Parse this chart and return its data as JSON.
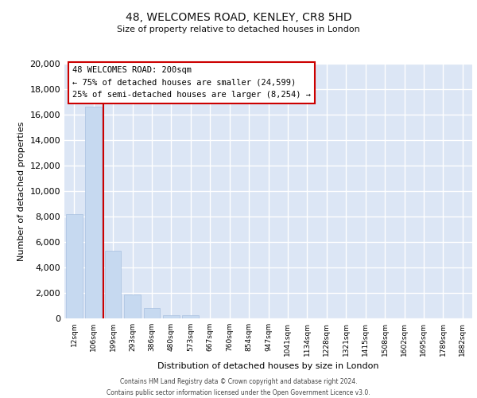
{
  "title": "48, WELCOMES ROAD, KENLEY, CR8 5HD",
  "subtitle": "Size of property relative to detached houses in London",
  "xlabel": "Distribution of detached houses by size in London",
  "ylabel": "Number of detached properties",
  "bar_labels": [
    "12sqm",
    "106sqm",
    "199sqm",
    "293sqm",
    "386sqm",
    "480sqm",
    "573sqm",
    "667sqm",
    "760sqm",
    "854sqm",
    "947sqm",
    "1041sqm",
    "1134sqm",
    "1228sqm",
    "1321sqm",
    "1415sqm",
    "1508sqm",
    "1602sqm",
    "1695sqm",
    "1789sqm",
    "1882sqm"
  ],
  "bar_values": [
    8200,
    16600,
    5300,
    1850,
    800,
    280,
    280,
    0,
    0,
    0,
    0,
    0,
    0,
    0,
    0,
    0,
    0,
    0,
    0,
    0,
    0
  ],
  "bar_color": "#c6d9f0",
  "highlight_bar_index": 1,
  "highlight_line_color": "#cc0000",
  "annotation_title": "48 WELCOMES ROAD: 200sqm",
  "annotation_line1": "← 75% of detached houses are smaller (24,599)",
  "annotation_line2": "25% of semi-detached houses are larger (8,254) →",
  "annotation_box_color": "#ffffff",
  "annotation_box_edgecolor": "#cc0000",
  "ylim": [
    0,
    20000
  ],
  "yticks": [
    0,
    2000,
    4000,
    6000,
    8000,
    10000,
    12000,
    14000,
    16000,
    18000,
    20000
  ],
  "footer_line1": "Contains HM Land Registry data © Crown copyright and database right 2024.",
  "footer_line2": "Contains public sector information licensed under the Open Government Licence v3.0.",
  "bg_color": "#dce6f5",
  "grid_color": "#ffffff"
}
